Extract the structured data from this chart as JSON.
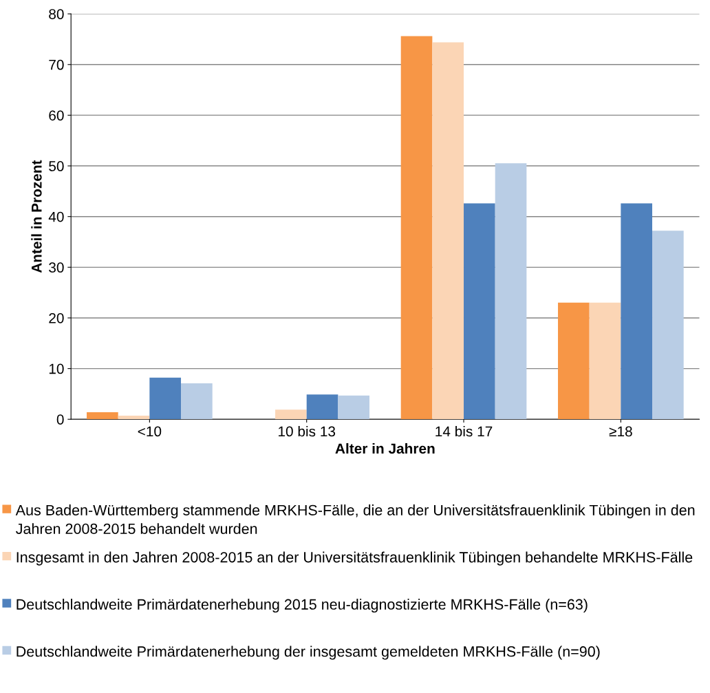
{
  "chart_data": {
    "type": "bar",
    "xlabel": "Alter in Jahren",
    "ylabel": "Anteil in Prozent",
    "categories": [
      "<10",
      "10 bis 13",
      "14 bis 17",
      "≥18"
    ],
    "series": [
      {
        "name": "Aus Baden-Württemberg stammende MRKHS-Fälle, die an der Universitätsfrauenklinik Tübingen in den Jahren 2008-2015 behandelt wurden",
        "color": "#f79646",
        "values": [
          1.4,
          0,
          75.6,
          23
        ]
      },
      {
        "name": "Insgesamt in den Jahren 2008-2015 an der Universitätsfrauenklinik Tübingen behandelte MRKHS-Fälle",
        "color": "#fbd5b5",
        "values": [
          0.7,
          1.9,
          74.4,
          23
        ]
      },
      {
        "name": "Deutschlandweite Primärdatenerhebung 2015 neu-diagnostizierte MRKHS-Fälle (n=63)",
        "color": "#4f81bd",
        "values": [
          8.2,
          4.9,
          42.6,
          42.6
        ]
      },
      {
        "name": "Deutschlandweite Primärdatenerhebung der insgesamt gemeldeten MRKHS-Fälle (n=90)",
        "color": "#b9cde5",
        "values": [
          7.1,
          4.7,
          50.5,
          37.2
        ]
      }
    ],
    "ylim": [
      0,
      80
    ],
    "yticks": [
      0,
      10,
      20,
      30,
      40,
      50,
      60,
      70,
      80
    ],
    "grid": "y",
    "legend": "bottom"
  }
}
